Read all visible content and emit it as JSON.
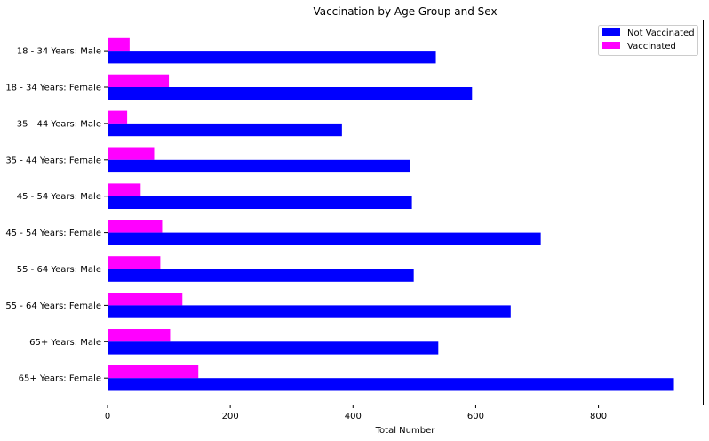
{
  "chart_data": {
    "type": "bar",
    "orientation": "horizontal",
    "title": "Vaccination by Age Group and Sex",
    "xlabel": "Total Number",
    "ylabel": "",
    "xlim": [
      0,
      970
    ],
    "xticks": [
      0,
      200,
      400,
      600,
      800
    ],
    "grid": false,
    "legend_position": "top-right",
    "categories": [
      "18 - 34 Years: Male",
      "18 - 34 Years: Female",
      "35 - 44 Years: Male",
      "35 - 44 Years: Female",
      "45 - 54 Years: Male",
      "45 - 54 Years: Female",
      "55 - 64 Years: Male",
      "55 - 64 Years: Female",
      "65+ Years: Male",
      "65+ Years: Female"
    ],
    "series": [
      {
        "name": "Not Vaccinated",
        "color": "#0000ff",
        "values": [
          535,
          594,
          382,
          493,
          496,
          706,
          499,
          657,
          539,
          923
        ]
      },
      {
        "name": "Vaccinated",
        "color": "#ff00ff",
        "values": [
          36,
          100,
          32,
          76,
          54,
          89,
          86,
          122,
          102,
          148
        ]
      }
    ]
  }
}
